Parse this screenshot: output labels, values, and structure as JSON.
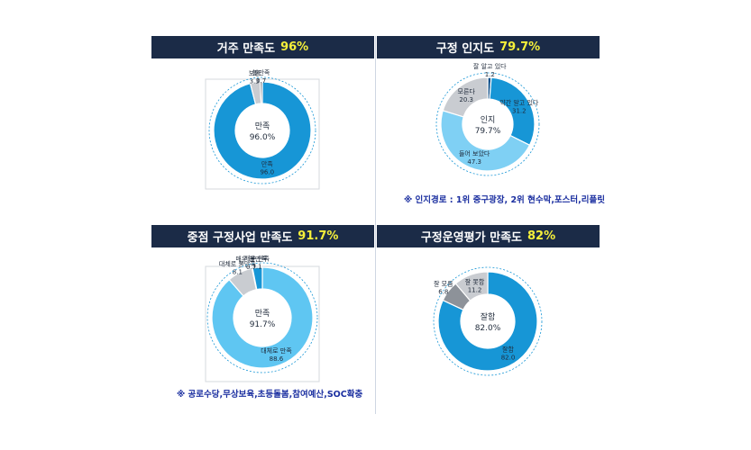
{
  "panels": [
    {
      "title": "거주 만족도",
      "highlight": "96%",
      "note": "",
      "chart_data": {
        "type": "pie",
        "center_label": "만족",
        "center_value": "96.0%",
        "slices": [
          {
            "label": "만족",
            "value": 96.0,
            "value_text": "96.0",
            "color": "#1796d6"
          },
          {
            "label": "보통",
            "value": 3.3,
            "value_text": "3.3",
            "color": "#c9ccd1"
          },
          {
            "label": "불만족",
            "value": 0.7,
            "value_text": "0.7",
            "color": "#7a7f87"
          }
        ]
      }
    },
    {
      "title": "구정 인지도",
      "highlight": "79.7%",
      "note": "※ 인지경로 : 1위 중구광장, 2위 현수막,포스터,리플릿",
      "chart_data": {
        "type": "pie",
        "center_label": "인지",
        "center_value": "79.7%",
        "slices": [
          {
            "label": "잘 알고 있다",
            "value": 1.2,
            "value_text": "1.2",
            "color": "#0c4f8a"
          },
          {
            "label": "약간 알고 있다",
            "value": 31.2,
            "value_text": "31.2",
            "color": "#1796d6"
          },
          {
            "label": "들어 보았다",
            "value": 47.3,
            "value_text": "47.3",
            "color": "#7fd0f4"
          },
          {
            "label": "모른다",
            "value": 20.3,
            "value_text": "20.3",
            "color": "#c9ccd1"
          }
        ]
      }
    },
    {
      "title": "중점 구정사업 만족도",
      "highlight": "91.7%",
      "note": "※ 공로수당,무상보육,초등돌봄,참여예산,SOC확충",
      "chart_data": {
        "type": "pie",
        "center_label": "만족",
        "center_value": "91.7%",
        "slices": [
          {
            "label": "대체로 만족",
            "value": 88.6,
            "value_text": "88.6",
            "color": "#5fc6f2"
          },
          {
            "label": "대체로 불만족",
            "value": 8.1,
            "value_text": "8.1",
            "color": "#c9ccd1"
          },
          {
            "label": "매우 불만족",
            "value": 0.2,
            "value_text": "0.2",
            "color": "#7a7f87"
          },
          {
            "label": "매우 만족",
            "value": 3.1,
            "value_text": "3.1",
            "color": "#1796d6"
          }
        ]
      }
    },
    {
      "title": "구정운영평가 만족도",
      "highlight": "82%",
      "note": "",
      "chart_data": {
        "type": "pie",
        "center_label": "잘함",
        "center_value": "82.0%",
        "slices": [
          {
            "label": "잘함",
            "value": 82.0,
            "value_text": "82.0",
            "color": "#1796d6"
          },
          {
            "label": "잘 모름",
            "value": 6.8,
            "value_text": "6.8",
            "color": "#8d9299"
          },
          {
            "label": "잘 못함",
            "value": 11.2,
            "value_text": "11.2",
            "color": "#c9ccd1"
          }
        ]
      }
    }
  ]
}
